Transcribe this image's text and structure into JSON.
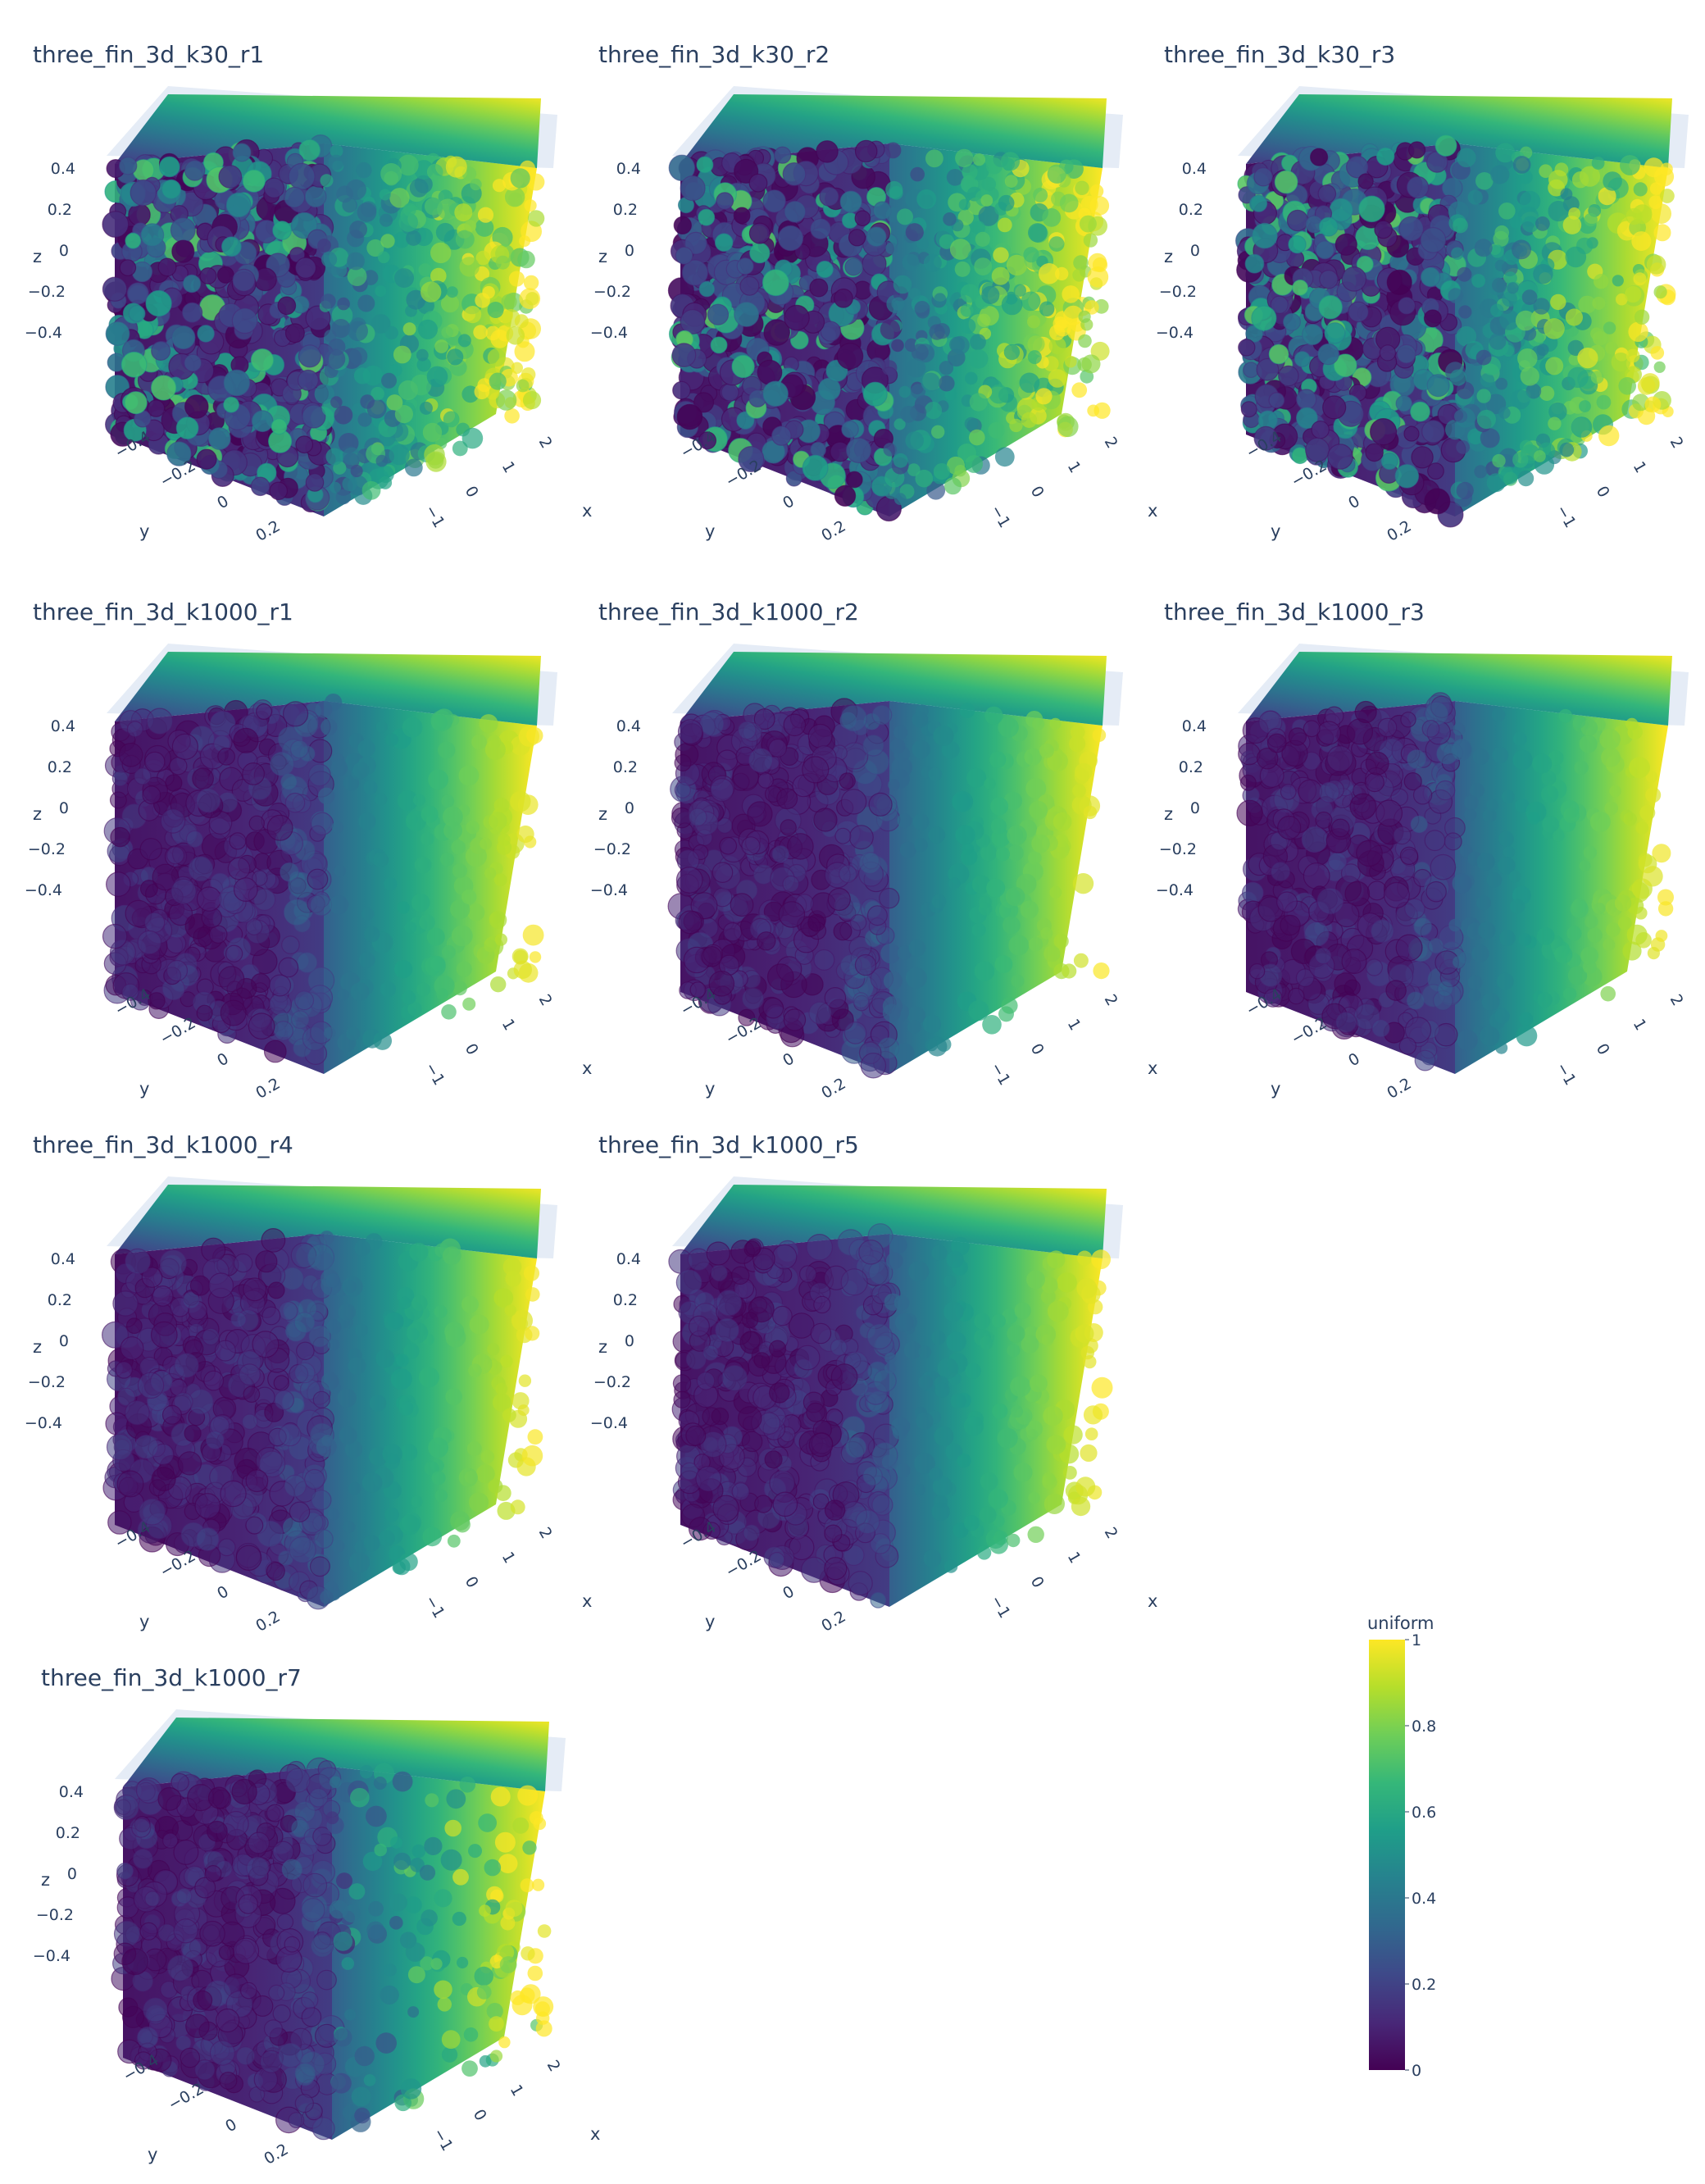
{
  "chart_data": {
    "type": "scatter3d",
    "colorscale": "viridis",
    "colorscale_stops": [
      "#440154",
      "#482878",
      "#3e4989",
      "#31688e",
      "#26828e",
      "#1f9e89",
      "#35b779",
      "#6ece58",
      "#b5de2b",
      "#fde725"
    ],
    "axis_labels": {
      "x": "x",
      "y": "y",
      "z": "z"
    },
    "z_ticks": [
      "0.4",
      "0.2",
      "0",
      "−0.2",
      "−0.4"
    ],
    "y_ticks": [
      "−0.4",
      "−0.2",
      "0",
      "0.2"
    ],
    "x_ticks": [
      "2",
      "1",
      "0",
      "−1"
    ],
    "colorbar": {
      "title": "uniform",
      "ticks": [
        "1",
        "0.8",
        "0.6",
        "0.4",
        "0.2",
        "0"
      ],
      "range": [
        0,
        1
      ]
    },
    "panels": [
      {
        "title": "three_fin_3d_k30_r1",
        "style": "noisy"
      },
      {
        "title": "three_fin_3d_k30_r2",
        "style": "noisy"
      },
      {
        "title": "three_fin_3d_k30_r3",
        "style": "noisy"
      },
      {
        "title": "three_fin_3d_k1000_r1",
        "style": "smooth"
      },
      {
        "title": "three_fin_3d_k1000_r2",
        "style": "smooth"
      },
      {
        "title": "three_fin_3d_k1000_r3",
        "style": "smooth"
      },
      {
        "title": "three_fin_3d_k1000_r4",
        "style": "smooth"
      },
      {
        "title": "three_fin_3d_k1000_r5",
        "style": "smooth"
      },
      {
        "title": "three_fin_3d_k1000_r7",
        "style": "banded"
      }
    ]
  }
}
